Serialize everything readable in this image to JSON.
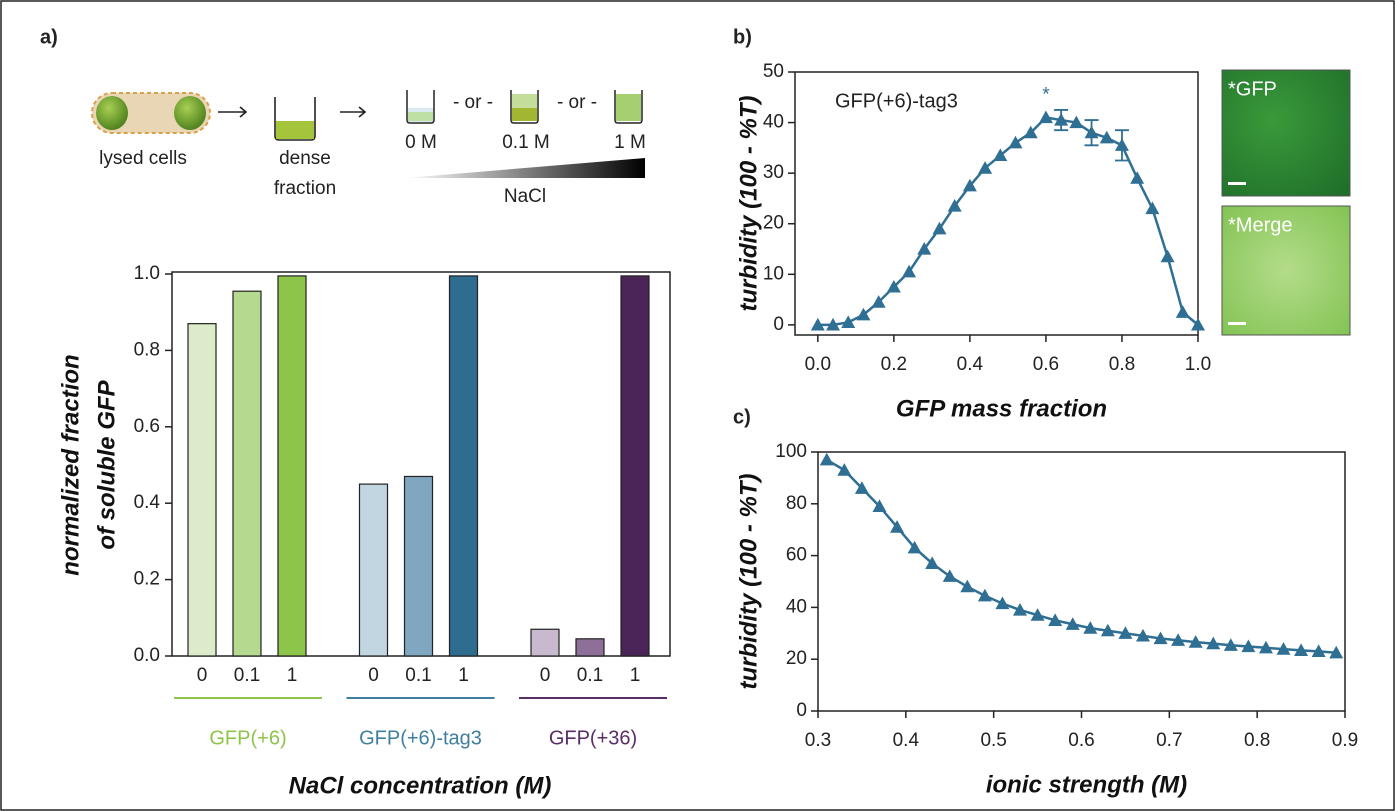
{
  "schematic": {
    "cell_label": "lysed cells",
    "dense_label": [
      "dense",
      "fraction"
    ],
    "separator": "- or -",
    "concentrations": [
      "0 M",
      "0.1 M",
      "1 M"
    ],
    "gradient_label": "NaCl"
  },
  "images": [
    {
      "label": "*GFP"
    },
    {
      "label": "*Merge"
    }
  ],
  "chart_data": [
    {
      "type": "bar",
      "panel_label": "a)",
      "categories": [
        "0",
        "0.1",
        "1",
        "0",
        "0.1",
        "1",
        "0",
        "0.1",
        "1"
      ],
      "values": [
        0.87,
        0.955,
        0.995,
        0.45,
        0.47,
        0.995,
        0.07,
        0.045,
        0.995
      ],
      "colors": [
        "#dcebc9",
        "#b5da8f",
        "#8cc54a",
        "#c2d6e1",
        "#7fa7c0",
        "#2e6d8f",
        "#c9b9cf",
        "#8d6f98",
        "#4b2558"
      ],
      "groups": [
        {
          "name": "GFP(+6)",
          "color": "#8cc54a"
        },
        {
          "name": "GFP(+6)-tag3",
          "color": "#3f7fa0"
        },
        {
          "name": "GFP(+36)",
          "color": "#5b2d66"
        }
      ],
      "ylim": [
        0,
        1
      ],
      "yticks": [
        {
          "value": 0,
          "label": "0.0"
        },
        0.2,
        0.4,
        0.6,
        0.8,
        {
          "value": 1,
          "label": "1.0"
        }
      ],
      "ylabel": [
        "normalized fraction",
        "of soluble GFP"
      ],
      "xlabel": "NaCl concentration (M)"
    },
    {
      "type": "line",
      "panel_label": "b)",
      "annotation": "*",
      "x": [
        0,
        0.04,
        0.08,
        0.12,
        0.16,
        0.2,
        0.24,
        0.28,
        0.32,
        0.36,
        0.4,
        0.44,
        0.48,
        0.52,
        0.56,
        0.6,
        0.64,
        0.68,
        0.72,
        0.76,
        0.8,
        0.84,
        0.88,
        0.92,
        0.96,
        1.0
      ],
      "series": [
        {
          "name": "GFP(+6)-tag3",
          "color": "#2f6f93",
          "values": [
            0,
            0,
            0.5,
            2,
            4.5,
            7.5,
            10.5,
            15,
            19,
            23.5,
            27.5,
            31,
            33.5,
            36,
            38,
            41,
            40.5,
            40,
            38,
            37,
            35.5,
            29,
            23,
            13.5,
            2.5,
            0
          ],
          "errors": [
            null,
            null,
            null,
            null,
            null,
            null,
            null,
            null,
            null,
            null,
            null,
            null,
            null,
            null,
            null,
            null,
            2,
            null,
            2.5,
            null,
            3,
            null,
            null,
            null,
            null,
            null
          ]
        }
      ],
      "xlim": [
        -0.06,
        1.0
      ],
      "xticks": [
        {
          "value": 0,
          "label": "0.0"
        },
        0.2,
        0.4,
        0.6,
        0.8,
        {
          "value": 1,
          "label": "1.0"
        }
      ],
      "ylim": [
        -2,
        50
      ],
      "yticks": [
        0,
        10,
        20,
        30,
        40,
        50
      ],
      "xlabel": "GFP mass fraction",
      "ylabel": "turbidity (100 - %T)"
    },
    {
      "type": "line",
      "panel_label": "c)",
      "x": [
        0.31,
        0.33,
        0.35,
        0.37,
        0.39,
        0.41,
        0.43,
        0.45,
        0.47,
        0.49,
        0.51,
        0.53,
        0.55,
        0.57,
        0.59,
        0.61,
        0.63,
        0.65,
        0.67,
        0.69,
        0.71,
        0.73,
        0.75,
        0.77,
        0.79,
        0.81,
        0.83,
        0.85,
        0.87,
        0.89
      ],
      "series": [
        {
          "color": "#2f6f93",
          "values": [
            97,
            93,
            86,
            79,
            71,
            63,
            57,
            52,
            48,
            44.5,
            41.5,
            39,
            37,
            35,
            33.5,
            32,
            31,
            30,
            29,
            28,
            27.3,
            26.6,
            26,
            25.4,
            24.9,
            24.4,
            23.9,
            23.4,
            23,
            22.5
          ]
        }
      ],
      "xlim": [
        0.3,
        0.9
      ],
      "xticks": [
        0.3,
        0.4,
        0.5,
        0.6,
        0.7,
        0.8,
        0.9
      ],
      "ylim": [
        0,
        100
      ],
      "yticks": [
        0,
        20,
        40,
        60,
        80,
        100
      ],
      "xlabel": "ionic strength (M)",
      "ylabel": "turbidity (100 - %T)"
    }
  ]
}
